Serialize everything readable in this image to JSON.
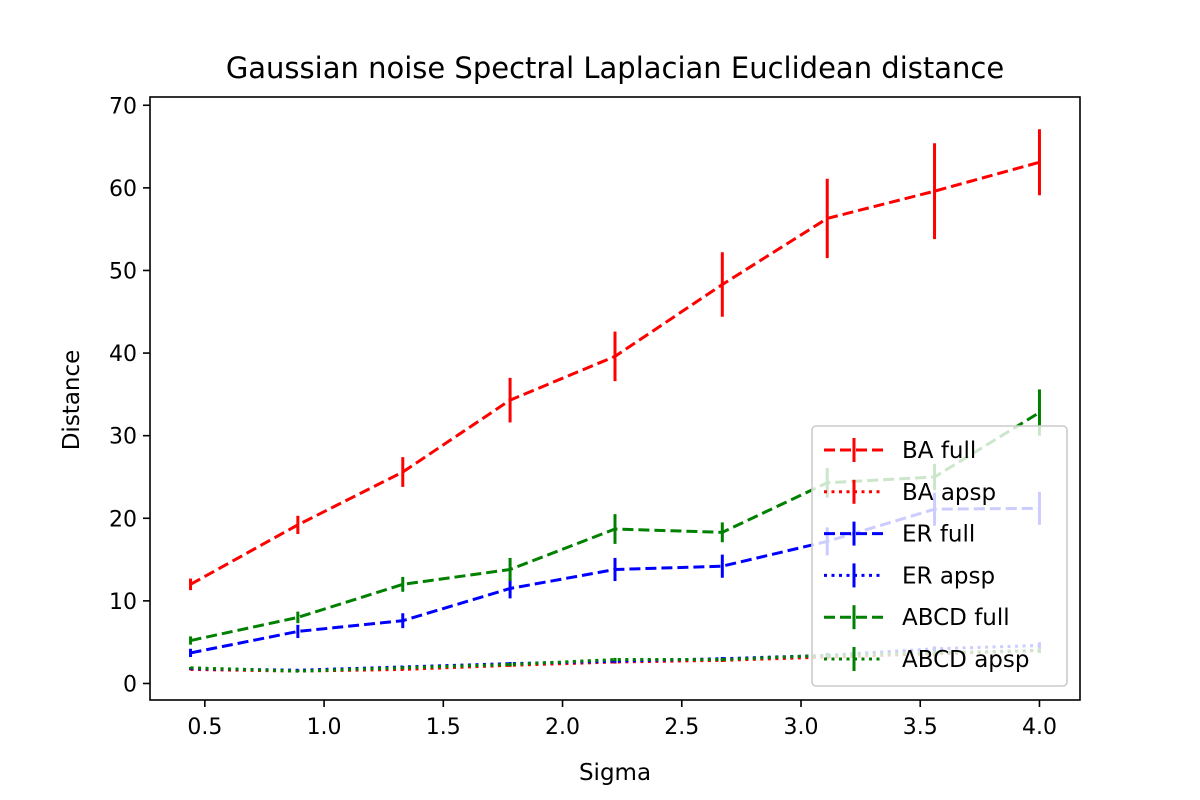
{
  "chart_data": {
    "type": "line",
    "title": "Gaussian noise Spectral Laplacian Euclidean distance",
    "xlabel": "Sigma",
    "ylabel": "Distance",
    "xlim": [
      0.27,
      4.17
    ],
    "ylim": [
      -2,
      71
    ],
    "x_ticks": [
      0.5,
      1.0,
      1.5,
      2.0,
      2.5,
      3.0,
      3.5,
      4.0
    ],
    "x_tick_labels": [
      "0.5",
      "1.0",
      "1.5",
      "2.0",
      "2.5",
      "3.0",
      "3.5",
      "4.0"
    ],
    "y_ticks": [
      0,
      10,
      20,
      30,
      40,
      50,
      60,
      70
    ],
    "y_tick_labels": [
      "0",
      "10",
      "20",
      "30",
      "40",
      "50",
      "60",
      "70"
    ],
    "grid": false,
    "legend_position": "lower-right",
    "x": [
      0.44,
      0.89,
      1.33,
      1.78,
      2.22,
      2.67,
      3.11,
      3.56,
      4.0
    ],
    "series": [
      {
        "name": "BA full",
        "color": "#ff0000",
        "style": "dashed",
        "values": [
          12.0,
          19.2,
          25.6,
          34.3,
          39.6,
          48.3,
          56.3,
          59.6,
          63.1
        ],
        "errors": [
          0.7,
          1.1,
          1.8,
          2.7,
          3.0,
          3.9,
          4.8,
          5.8,
          4.0
        ]
      },
      {
        "name": "BA apsp",
        "color": "#ff0000",
        "style": "dotted",
        "values": [
          1.7,
          1.5,
          1.7,
          2.2,
          2.6,
          2.8,
          3.2,
          3.6,
          4.0
        ],
        "errors": [
          0.1,
          0.1,
          0.1,
          0.2,
          0.2,
          0.2,
          0.3,
          0.3,
          0.3
        ]
      },
      {
        "name": "ER full",
        "color": "#0000ff",
        "style": "dashed",
        "values": [
          3.7,
          6.3,
          7.6,
          11.5,
          13.8,
          14.2,
          17.2,
          21.1,
          21.2
        ],
        "errors": [
          0.5,
          0.8,
          0.9,
          1.2,
          1.4,
          1.4,
          1.7,
          2.0,
          2.0
        ]
      },
      {
        "name": "ER apsp",
        "color": "#0000ff",
        "style": "dotted",
        "values": [
          1.8,
          1.6,
          2.0,
          2.4,
          2.7,
          3.0,
          3.4,
          4.2,
          4.6
        ],
        "errors": [
          0.1,
          0.1,
          0.1,
          0.2,
          0.2,
          0.2,
          0.3,
          0.3,
          0.4
        ]
      },
      {
        "name": "ABCD full",
        "color": "#008000",
        "style": "dashed",
        "values": [
          5.2,
          8.0,
          12.0,
          13.8,
          18.7,
          18.3,
          24.3,
          25.0,
          32.8
        ],
        "errors": [
          0.5,
          0.7,
          0.9,
          1.4,
          1.8,
          1.2,
          1.8,
          1.6,
          2.8
        ]
      },
      {
        "name": "ABCD apsp",
        "color": "#008000",
        "style": "dotted",
        "values": [
          1.9,
          1.5,
          1.9,
          2.3,
          2.9,
          2.9,
          3.4,
          3.7,
          4.0
        ],
        "errors": [
          0.1,
          0.1,
          0.1,
          0.2,
          0.2,
          0.2,
          0.2,
          0.3,
          0.3
        ]
      }
    ]
  }
}
